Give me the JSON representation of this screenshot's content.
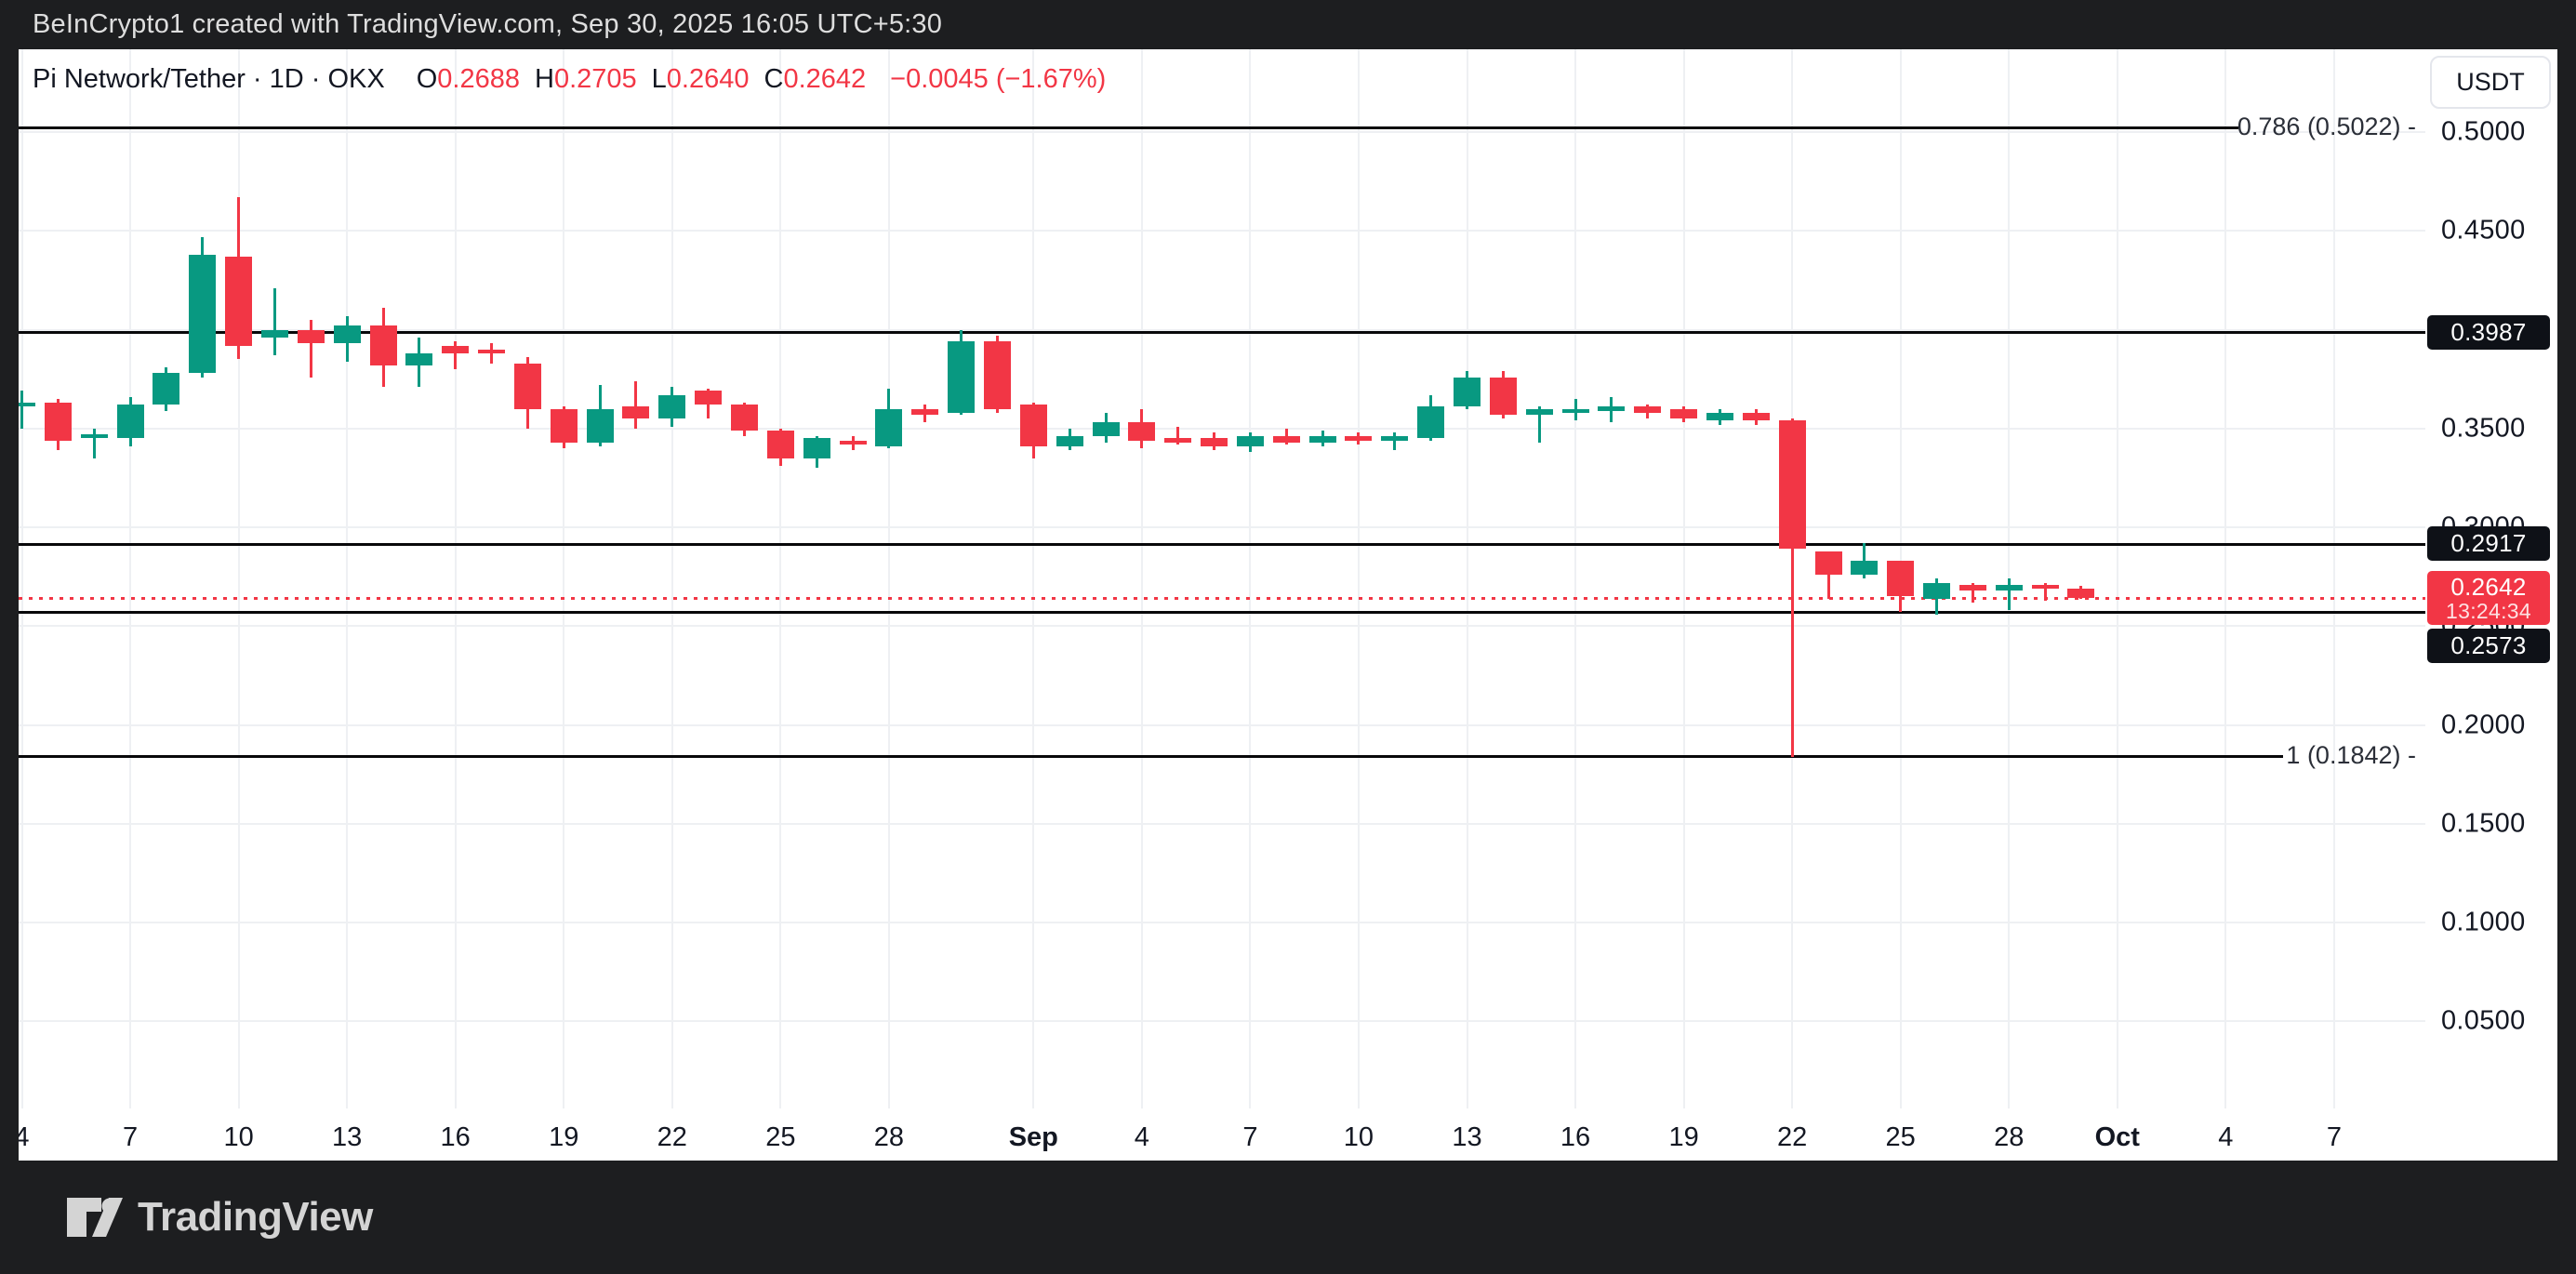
{
  "frame": {
    "watermark": "BeInCrypto1 created with TradingView.com, Sep 30, 2025 16:05 UTC+5:30",
    "brand": "TradingView"
  },
  "legend": {
    "title": "Pi Network/Tether · 1D · OKX",
    "ohlc": [
      {
        "label": "O",
        "value": "0.2688"
      },
      {
        "label": "H",
        "value": "0.2705"
      },
      {
        "label": "L",
        "value": "0.2640"
      },
      {
        "label": "C",
        "value": "0.2642"
      }
    ],
    "change": "−0.0045 (−1.67%)"
  },
  "currency_button": "USDT",
  "price_axis": {
    "labels": [
      {
        "text": "0.5000",
        "price": 0.5
      },
      {
        "text": "0.4500",
        "price": 0.45
      },
      {
        "text": "0.4000",
        "price": 0.4
      },
      {
        "text": "0.3500",
        "price": 0.35
      },
      {
        "text": "0.3000",
        "price": 0.3
      },
      {
        "text": "0.2500",
        "price": 0.25
      },
      {
        "text": "0.2000",
        "price": 0.2
      },
      {
        "text": "0.1500",
        "price": 0.15
      },
      {
        "text": "0.1000",
        "price": 0.1
      },
      {
        "text": "0.0500",
        "price": 0.05
      }
    ],
    "current_badge": {
      "price": 0.2642,
      "label": "0.2642",
      "countdown": "13:24:34"
    }
  },
  "time_axis": {
    "ticks": [
      {
        "label": "4",
        "index": 0,
        "bold": false
      },
      {
        "label": "7",
        "index": 3,
        "bold": false
      },
      {
        "label": "10",
        "index": 6,
        "bold": false
      },
      {
        "label": "13",
        "index": 9,
        "bold": false
      },
      {
        "label": "16",
        "index": 12,
        "bold": false
      },
      {
        "label": "19",
        "index": 15,
        "bold": false
      },
      {
        "label": "22",
        "index": 18,
        "bold": false
      },
      {
        "label": "25",
        "index": 21,
        "bold": false
      },
      {
        "label": "28",
        "index": 24,
        "bold": false
      },
      {
        "label": "Sep",
        "index": 28,
        "bold": true
      },
      {
        "label": "4",
        "index": 31,
        "bold": false
      },
      {
        "label": "7",
        "index": 34,
        "bold": false
      },
      {
        "label": "10",
        "index": 37,
        "bold": false
      },
      {
        "label": "13",
        "index": 40,
        "bold": false
      },
      {
        "label": "16",
        "index": 43,
        "bold": false
      },
      {
        "label": "19",
        "index": 46,
        "bold": false
      },
      {
        "label": "22",
        "index": 49,
        "bold": false
      },
      {
        "label": "25",
        "index": 52,
        "bold": false
      },
      {
        "label": "28",
        "index": 55,
        "bold": false
      },
      {
        "label": "Oct",
        "index": 58,
        "bold": true
      },
      {
        "label": "4",
        "index": 61,
        "bold": false
      },
      {
        "label": "7",
        "index": 64,
        "bold": false
      }
    ]
  },
  "levels": [
    {
      "label": "0.3987",
      "price": 0.3987
    },
    {
      "label": "0.2917",
      "price": 0.2917
    },
    {
      "label": "0.2573",
      "price": 0.2573
    }
  ],
  "fib_levels": [
    {
      "label": "0.786 (0.5022) -",
      "price": 0.5022,
      "line_end": 2387
    },
    {
      "label": "1 (0.1842) -",
      "price": 0.1842,
      "line_end": 2435
    }
  ],
  "chart_data": {
    "type": "candlestick",
    "title": "Pi Network/Tether",
    "timeframe": "1D",
    "exchange": "OKX",
    "quote_currency": "USDT",
    "ylim": [
      0.006,
      0.542
    ],
    "x_range": [
      "Aug 4",
      "Oct 9"
    ],
    "grid": true,
    "current_price": 0.2642,
    "colors": {
      "up": "#089981",
      "down": "#f23645",
      "level_line": "#08080a",
      "current_line": "#f23645"
    },
    "candles": [
      {
        "d": "Aug 4",
        "o": 0.361,
        "h": 0.369,
        "l": 0.35,
        "c": 0.363
      },
      {
        "d": "Aug 5",
        "o": 0.363,
        "h": 0.365,
        "l": 0.339,
        "c": 0.344
      },
      {
        "d": "Aug 6",
        "o": 0.346,
        "h": 0.35,
        "l": 0.335,
        "c": 0.347
      },
      {
        "d": "Aug 7",
        "o": 0.345,
        "h": 0.366,
        "l": 0.341,
        "c": 0.362
      },
      {
        "d": "Aug 8",
        "o": 0.362,
        "h": 0.381,
        "l": 0.359,
        "c": 0.378
      },
      {
        "d": "Aug 9",
        "o": 0.378,
        "h": 0.447,
        "l": 0.376,
        "c": 0.438
      },
      {
        "d": "Aug 10",
        "o": 0.437,
        "h": 0.467,
        "l": 0.385,
        "c": 0.392
      },
      {
        "d": "Aug 11",
        "o": 0.396,
        "h": 0.421,
        "l": 0.387,
        "c": 0.4
      },
      {
        "d": "Aug 12",
        "o": 0.4,
        "h": 0.405,
        "l": 0.376,
        "c": 0.393
      },
      {
        "d": "Aug 13",
        "o": 0.393,
        "h": 0.407,
        "l": 0.384,
        "c": 0.402
      },
      {
        "d": "Aug 14",
        "o": 0.402,
        "h": 0.411,
        "l": 0.371,
        "c": 0.382
      },
      {
        "d": "Aug 15",
        "o": 0.382,
        "h": 0.396,
        "l": 0.371,
        "c": 0.388
      },
      {
        "d": "Aug 16",
        "o": 0.392,
        "h": 0.394,
        "l": 0.38,
        "c": 0.388
      },
      {
        "d": "Aug 17",
        "o": 0.39,
        "h": 0.393,
        "l": 0.383,
        "c": 0.388
      },
      {
        "d": "Aug 18",
        "o": 0.383,
        "h": 0.386,
        "l": 0.35,
        "c": 0.36
      },
      {
        "d": "Aug 19",
        "o": 0.36,
        "h": 0.361,
        "l": 0.34,
        "c": 0.343
      },
      {
        "d": "Aug 20",
        "o": 0.343,
        "h": 0.372,
        "l": 0.341,
        "c": 0.36
      },
      {
        "d": "Aug 21",
        "o": 0.361,
        "h": 0.374,
        "l": 0.35,
        "c": 0.355
      },
      {
        "d": "Aug 22",
        "o": 0.355,
        "h": 0.371,
        "l": 0.351,
        "c": 0.367
      },
      {
        "d": "Aug 23",
        "o": 0.369,
        "h": 0.37,
        "l": 0.355,
        "c": 0.362
      },
      {
        "d": "Aug 24",
        "o": 0.362,
        "h": 0.363,
        "l": 0.346,
        "c": 0.349
      },
      {
        "d": "Aug 25",
        "o": 0.349,
        "h": 0.35,
        "l": 0.331,
        "c": 0.335
      },
      {
        "d": "Aug 26",
        "o": 0.335,
        "h": 0.346,
        "l": 0.33,
        "c": 0.345
      },
      {
        "d": "Aug 27",
        "o": 0.344,
        "h": 0.346,
        "l": 0.339,
        "c": 0.342
      },
      {
        "d": "Aug 28",
        "o": 0.341,
        "h": 0.37,
        "l": 0.34,
        "c": 0.36
      },
      {
        "d": "Aug 29",
        "o": 0.36,
        "h": 0.362,
        "l": 0.353,
        "c": 0.357
      },
      {
        "d": "Aug 30",
        "o": 0.358,
        "h": 0.4,
        "l": 0.357,
        "c": 0.394
      },
      {
        "d": "Aug 31",
        "o": 0.394,
        "h": 0.397,
        "l": 0.358,
        "c": 0.36
      },
      {
        "d": "Sep 1",
        "o": 0.362,
        "h": 0.363,
        "l": 0.335,
        "c": 0.341
      },
      {
        "d": "Sep 2",
        "o": 0.341,
        "h": 0.35,
        "l": 0.339,
        "c": 0.346
      },
      {
        "d": "Sep 3",
        "o": 0.346,
        "h": 0.358,
        "l": 0.343,
        "c": 0.353
      },
      {
        "d": "Sep 4",
        "o": 0.353,
        "h": 0.36,
        "l": 0.34,
        "c": 0.344
      },
      {
        "d": "Sep 5",
        "o": 0.345,
        "h": 0.351,
        "l": 0.342,
        "c": 0.343
      },
      {
        "d": "Sep 6",
        "o": 0.345,
        "h": 0.348,
        "l": 0.339,
        "c": 0.341
      },
      {
        "d": "Sep 7",
        "o": 0.341,
        "h": 0.348,
        "l": 0.338,
        "c": 0.346
      },
      {
        "d": "Sep 8",
        "o": 0.346,
        "h": 0.35,
        "l": 0.342,
        "c": 0.343
      },
      {
        "d": "Sep 9",
        "o": 0.343,
        "h": 0.349,
        "l": 0.341,
        "c": 0.346
      },
      {
        "d": "Sep 10",
        "o": 0.346,
        "h": 0.348,
        "l": 0.342,
        "c": 0.344
      },
      {
        "d": "Sep 11",
        "o": 0.344,
        "h": 0.348,
        "l": 0.339,
        "c": 0.346
      },
      {
        "d": "Sep 12",
        "o": 0.345,
        "h": 0.367,
        "l": 0.344,
        "c": 0.361
      },
      {
        "d": "Sep 13",
        "o": 0.361,
        "h": 0.379,
        "l": 0.36,
        "c": 0.376
      },
      {
        "d": "Sep 14",
        "o": 0.376,
        "h": 0.379,
        "l": 0.355,
        "c": 0.357
      },
      {
        "d": "Sep 15",
        "o": 0.357,
        "h": 0.361,
        "l": 0.343,
        "c": 0.36
      },
      {
        "d": "Sep 16",
        "o": 0.358,
        "h": 0.365,
        "l": 0.354,
        "c": 0.36
      },
      {
        "d": "Sep 17",
        "o": 0.359,
        "h": 0.366,
        "l": 0.353,
        "c": 0.361
      },
      {
        "d": "Sep 18",
        "o": 0.361,
        "h": 0.362,
        "l": 0.355,
        "c": 0.358
      },
      {
        "d": "Sep 19",
        "o": 0.36,
        "h": 0.361,
        "l": 0.353,
        "c": 0.355
      },
      {
        "d": "Sep 20",
        "o": 0.354,
        "h": 0.36,
        "l": 0.352,
        "c": 0.358
      },
      {
        "d": "Sep 21",
        "o": 0.358,
        "h": 0.36,
        "l": 0.352,
        "c": 0.354
      },
      {
        "d": "Sep 22",
        "o": 0.354,
        "h": 0.355,
        "l": 0.184,
        "c": 0.289
      },
      {
        "d": "Sep 23",
        "o": 0.288,
        "h": 0.288,
        "l": 0.264,
        "c": 0.276
      },
      {
        "d": "Sep 24",
        "o": 0.276,
        "h": 0.292,
        "l": 0.274,
        "c": 0.283
      },
      {
        "d": "Sep 25",
        "o": 0.283,
        "h": 0.283,
        "l": 0.257,
        "c": 0.265
      },
      {
        "d": "Sep 26",
        "o": 0.264,
        "h": 0.274,
        "l": 0.256,
        "c": 0.272
      },
      {
        "d": "Sep 27",
        "o": 0.271,
        "h": 0.272,
        "l": 0.262,
        "c": 0.268
      },
      {
        "d": "Sep 28",
        "o": 0.268,
        "h": 0.274,
        "l": 0.258,
        "c": 0.271
      },
      {
        "d": "Sep 29",
        "o": 0.271,
        "h": 0.272,
        "l": 0.263,
        "c": 0.269
      },
      {
        "d": "Sep 30",
        "o": 0.2688,
        "h": 0.2705,
        "l": 0.264,
        "c": 0.2642
      }
    ]
  }
}
